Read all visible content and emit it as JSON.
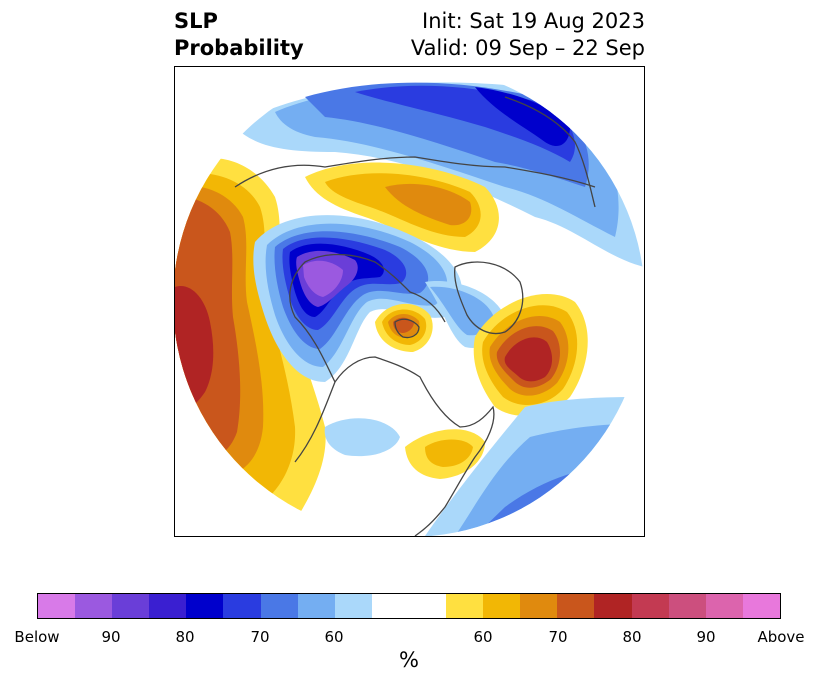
{
  "title": {
    "left_line1": "SLP",
    "left_line2": "Probability",
    "right_line1": "Init: Sat 19 Aug 2023",
    "right_line2": "Valid: 09 Sep – 22 Sep"
  },
  "map": {
    "projection": "north-polar-stereographic",
    "coverage": "Northern Hemisphere (Pacific, North America, Atlantic)",
    "features": [
      {
        "name": "below-normal-center",
        "region": "Alaska / Bering",
        "category": "Below",
        "max_percent": 90
      },
      {
        "name": "above-normal-center",
        "region": "North Atlantic",
        "category": "Above",
        "max_percent": 80
      },
      {
        "name": "above-normal-center",
        "region": "North Pacific",
        "category": "Above",
        "max_percent": 80
      },
      {
        "name": "above-normal-center",
        "region": "Hudson Bay",
        "category": "Above",
        "max_percent": 70
      },
      {
        "name": "above-normal-center",
        "region": "Siberia",
        "category": "Above",
        "max_percent": 70
      },
      {
        "name": "above-normal-center",
        "region": "Eastern US",
        "category": "Above",
        "max_percent": 60
      },
      {
        "name": "below-normal-center",
        "region": "Eurasia / Scandinavia",
        "category": "Below",
        "max_percent": 70
      },
      {
        "name": "below-normal-center",
        "region": "Subtropical Atlantic",
        "category": "Below",
        "max_percent": 70
      }
    ]
  },
  "colorbar": {
    "unit_label": "%",
    "tick_labels": [
      "Below",
      "90",
      "80",
      "70",
      "60",
      "60",
      "70",
      "80",
      "90",
      "Above"
    ],
    "colors": [
      "#d87ae8",
      "#9b59e0",
      "#6a3ed8",
      "#3a1fd1",
      "#0000cc",
      "#2a3ce0",
      "#4a78e6",
      "#74aef2",
      "#aad8fa",
      "#ffffff",
      "#ffffff",
      "#ffe040",
      "#f2b705",
      "#e08a0e",
      "#c9561c",
      "#b02424",
      "#c33a52",
      "#cc4f7e",
      "#dc64ad",
      "#e878dc"
    ]
  }
}
